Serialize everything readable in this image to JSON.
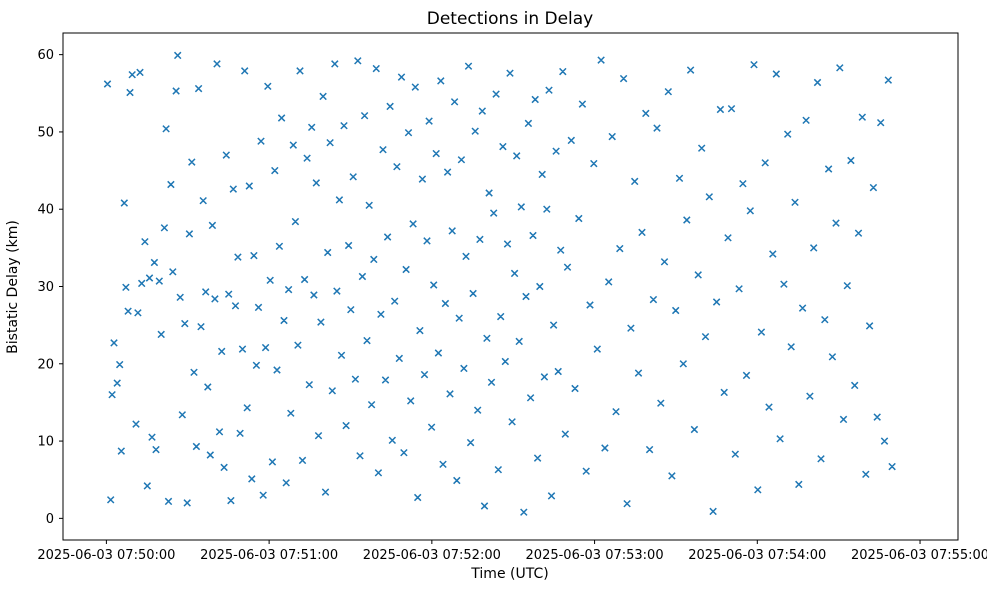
{
  "chart_data": {
    "type": "scatter",
    "title": "Detections in Delay",
    "xlabel": "Time (UTC)",
    "ylabel": "Bistatic Delay (km)",
    "marker": "x",
    "marker_color": "#1f77b4",
    "grid": false,
    "legend": "none",
    "x_unit": "seconds after 2025-06-03 07:50:00 UTC",
    "x_ticks_seconds": [
      0,
      60,
      120,
      180,
      240,
      300
    ],
    "x_tick_labels": [
      "2025-06-03 07:50:00",
      "2025-06-03 07:51:00",
      "2025-06-03 07:52:00",
      "2025-06-03 07:53:00",
      "2025-06-03 07:54:00",
      "2025-06-03 07:55:00"
    ],
    "y_ticks": [
      0,
      10,
      20,
      30,
      40,
      50,
      60
    ],
    "xlim_seconds": [
      -16,
      314
    ],
    "ylim": [
      -2.8,
      62.8
    ],
    "points": [
      [
        0.4,
        56.2
      ],
      [
        1.6,
        2.4
      ],
      [
        2.1,
        16.0
      ],
      [
        2.8,
        22.7
      ],
      [
        4.0,
        17.5
      ],
      [
        4.9,
        19.9
      ],
      [
        5.5,
        8.7
      ],
      [
        6.6,
        40.8
      ],
      [
        7.2,
        29.9
      ],
      [
        8.0,
        26.8
      ],
      [
        8.7,
        55.1
      ],
      [
        9.5,
        57.4
      ],
      [
        10.9,
        12.2
      ],
      [
        11.6,
        26.6
      ],
      [
        12.4,
        57.7
      ],
      [
        13.0,
        30.4
      ],
      [
        14.2,
        35.8
      ],
      [
        15.1,
        4.2
      ],
      [
        15.9,
        31.1
      ],
      [
        16.8,
        10.5
      ],
      [
        17.7,
        33.1
      ],
      [
        18.3,
        8.9
      ],
      [
        19.5,
        30.7
      ],
      [
        20.2,
        23.8
      ],
      [
        21.4,
        37.6
      ],
      [
        22.0,
        50.4
      ],
      [
        22.9,
        2.2
      ],
      [
        23.8,
        43.2
      ],
      [
        24.5,
        31.9
      ],
      [
        25.7,
        55.3
      ],
      [
        26.3,
        59.9
      ],
      [
        27.2,
        28.6
      ],
      [
        28.0,
        13.4
      ],
      [
        28.9,
        25.2
      ],
      [
        29.8,
        2.0
      ],
      [
        30.6,
        36.8
      ],
      [
        31.5,
        46.1
      ],
      [
        32.3,
        18.9
      ],
      [
        33.2,
        9.3
      ],
      [
        34.0,
        55.6
      ],
      [
        34.9,
        24.8
      ],
      [
        35.7,
        41.1
      ],
      [
        36.6,
        29.3
      ],
      [
        37.4,
        17.0
      ],
      [
        38.3,
        8.2
      ],
      [
        39.1,
        37.9
      ],
      [
        40.0,
        28.4
      ],
      [
        40.8,
        58.8
      ],
      [
        41.7,
        11.2
      ],
      [
        42.5,
        21.6
      ],
      [
        43.4,
        6.6
      ],
      [
        44.2,
        47.0
      ],
      [
        45.1,
        29.0
      ],
      [
        45.9,
        2.3
      ],
      [
        46.8,
        42.6
      ],
      [
        47.6,
        27.5
      ],
      [
        48.5,
        33.8
      ],
      [
        49.3,
        11.0
      ],
      [
        50.2,
        21.9
      ],
      [
        51.0,
        57.9
      ],
      [
        51.9,
        14.3
      ],
      [
        52.7,
        43.0
      ],
      [
        53.6,
        5.1
      ],
      [
        54.4,
        34.0
      ],
      [
        55.3,
        19.8
      ],
      [
        56.1,
        27.3
      ],
      [
        57.0,
        48.8
      ],
      [
        57.8,
        3.0
      ],
      [
        58.7,
        22.1
      ],
      [
        59.5,
        55.9
      ],
      [
        60.4,
        30.8
      ],
      [
        61.2,
        7.3
      ],
      [
        62.1,
        45.0
      ],
      [
        62.9,
        19.2
      ],
      [
        63.8,
        35.2
      ],
      [
        64.6,
        51.8
      ],
      [
        65.5,
        25.6
      ],
      [
        66.3,
        4.6
      ],
      [
        67.2,
        29.6
      ],
      [
        68.0,
        13.6
      ],
      [
        68.9,
        48.3
      ],
      [
        69.7,
        38.4
      ],
      [
        70.6,
        22.4
      ],
      [
        71.4,
        57.9
      ],
      [
        72.3,
        7.5
      ],
      [
        73.1,
        30.9
      ],
      [
        74.0,
        46.6
      ],
      [
        74.8,
        17.3
      ],
      [
        75.7,
        50.6
      ],
      [
        76.5,
        28.9
      ],
      [
        77.4,
        43.4
      ],
      [
        78.2,
        10.7
      ],
      [
        79.1,
        25.4
      ],
      [
        79.9,
        54.6
      ],
      [
        80.8,
        3.4
      ],
      [
        81.6,
        34.4
      ],
      [
        82.5,
        48.6
      ],
      [
        83.3,
        16.5
      ],
      [
        84.2,
        58.8
      ],
      [
        85.0,
        29.4
      ],
      [
        85.9,
        41.2
      ],
      [
        86.7,
        21.1
      ],
      [
        87.6,
        50.8
      ],
      [
        88.4,
        12.0
      ],
      [
        89.3,
        35.3
      ],
      [
        90.1,
        27.0
      ],
      [
        91.0,
        44.2
      ],
      [
        91.8,
        18.0
      ],
      [
        92.7,
        59.2
      ],
      [
        93.5,
        8.1
      ],
      [
        94.4,
        31.3
      ],
      [
        95.2,
        52.1
      ],
      [
        96.1,
        23.0
      ],
      [
        96.9,
        40.5
      ],
      [
        97.8,
        14.7
      ],
      [
        98.6,
        33.5
      ],
      [
        99.5,
        58.2
      ],
      [
        100.3,
        5.9
      ],
      [
        101.2,
        26.4
      ],
      [
        102.0,
        47.7
      ],
      [
        102.9,
        17.9
      ],
      [
        103.7,
        36.4
      ],
      [
        104.6,
        53.3
      ],
      [
        105.4,
        10.1
      ],
      [
        106.3,
        28.1
      ],
      [
        107.1,
        45.5
      ],
      [
        108.0,
        20.7
      ],
      [
        108.8,
        57.1
      ],
      [
        109.7,
        8.5
      ],
      [
        110.5,
        32.2
      ],
      [
        111.4,
        49.9
      ],
      [
        112.2,
        15.2
      ],
      [
        113.1,
        38.1
      ],
      [
        113.9,
        55.8
      ],
      [
        114.8,
        2.7
      ],
      [
        115.6,
        24.3
      ],
      [
        116.5,
        43.9
      ],
      [
        117.3,
        18.6
      ],
      [
        118.2,
        35.9
      ],
      [
        119.0,
        51.4
      ],
      [
        119.9,
        11.8
      ],
      [
        120.7,
        30.2
      ],
      [
        121.6,
        47.2
      ],
      [
        122.4,
        21.4
      ],
      [
        123.3,
        56.6
      ],
      [
        124.1,
        7.0
      ],
      [
        125.0,
        27.8
      ],
      [
        125.8,
        44.8
      ],
      [
        126.7,
        16.1
      ],
      [
        127.5,
        37.2
      ],
      [
        128.4,
        53.9
      ],
      [
        129.2,
        4.9
      ],
      [
        130.1,
        25.9
      ],
      [
        130.9,
        46.4
      ],
      [
        131.8,
        19.4
      ],
      [
        132.6,
        33.9
      ],
      [
        133.5,
        58.5
      ],
      [
        134.3,
        9.8
      ],
      [
        135.2,
        29.1
      ],
      [
        136.0,
        50.1
      ],
      [
        136.9,
        14.0
      ],
      [
        137.7,
        36.1
      ],
      [
        138.6,
        52.7
      ],
      [
        139.4,
        1.6
      ],
      [
        140.3,
        23.3
      ],
      [
        141.1,
        42.1
      ],
      [
        142.0,
        17.6
      ],
      [
        142.8,
        39.5
      ],
      [
        143.7,
        54.9
      ],
      [
        144.5,
        6.3
      ],
      [
        145.4,
        26.1
      ],
      [
        146.2,
        48.1
      ],
      [
        147.1,
        20.3
      ],
      [
        147.9,
        35.5
      ],
      [
        148.8,
        57.6
      ],
      [
        149.6,
        12.5
      ],
      [
        150.5,
        31.7
      ],
      [
        151.3,
        46.9
      ],
      [
        152.2,
        22.9
      ],
      [
        153.0,
        40.3
      ],
      [
        153.9,
        0.8
      ],
      [
        154.7,
        28.7
      ],
      [
        155.6,
        51.1
      ],
      [
        156.4,
        15.6
      ],
      [
        157.3,
        36.6
      ],
      [
        158.1,
        54.2
      ],
      [
        159.0,
        7.8
      ],
      [
        159.8,
        30.0
      ],
      [
        160.7,
        44.5
      ],
      [
        161.5,
        18.3
      ],
      [
        162.4,
        40.0
      ],
      [
        163.2,
        55.4
      ],
      [
        164.1,
        2.9
      ],
      [
        164.9,
        25.0
      ],
      [
        165.8,
        47.5
      ],
      [
        166.6,
        19.0
      ],
      [
        167.5,
        34.7
      ],
      [
        168.3,
        57.8
      ],
      [
        169.2,
        10.9
      ],
      [
        170.0,
        32.5
      ],
      [
        171.4,
        48.9
      ],
      [
        172.8,
        16.8
      ],
      [
        174.2,
        38.8
      ],
      [
        175.5,
        53.6
      ],
      [
        176.9,
        6.1
      ],
      [
        178.3,
        27.6
      ],
      [
        179.7,
        45.9
      ],
      [
        181.0,
        21.9
      ],
      [
        182.4,
        59.3
      ],
      [
        183.8,
        9.1
      ],
      [
        185.2,
        30.6
      ],
      [
        186.5,
        49.4
      ],
      [
        187.9,
        13.8
      ],
      [
        189.3,
        34.9
      ],
      [
        190.7,
        56.9
      ],
      [
        192.0,
        1.9
      ],
      [
        193.4,
        24.6
      ],
      [
        194.8,
        43.6
      ],
      [
        196.2,
        18.8
      ],
      [
        197.5,
        37.0
      ],
      [
        198.9,
        52.4
      ],
      [
        200.3,
        8.9
      ],
      [
        201.7,
        28.3
      ],
      [
        203.0,
        50.5
      ],
      [
        204.4,
        14.9
      ],
      [
        205.8,
        33.2
      ],
      [
        207.2,
        55.2
      ],
      [
        208.5,
        5.5
      ],
      [
        209.9,
        26.9
      ],
      [
        211.3,
        44.0
      ],
      [
        212.7,
        20.0
      ],
      [
        214.0,
        38.6
      ],
      [
        215.4,
        58.0
      ],
      [
        216.8,
        11.5
      ],
      [
        218.2,
        31.5
      ],
      [
        219.5,
        47.9
      ],
      [
        220.9,
        23.5
      ],
      [
        222.3,
        41.6
      ],
      [
        223.7,
        0.9
      ],
      [
        225.0,
        28.0
      ],
      [
        226.4,
        52.9
      ],
      [
        227.8,
        16.3
      ],
      [
        229.2,
        36.3
      ],
      [
        230.5,
        53.0
      ],
      [
        231.9,
        8.3
      ],
      [
        233.3,
        29.7
      ],
      [
        234.7,
        43.3
      ],
      [
        236.0,
        18.5
      ],
      [
        237.4,
        39.8
      ],
      [
        238.8,
        58.7
      ],
      [
        240.2,
        3.7
      ],
      [
        241.5,
        24.1
      ],
      [
        242.9,
        46.0
      ],
      [
        244.3,
        14.4
      ],
      [
        245.7,
        34.2
      ],
      [
        247.0,
        57.5
      ],
      [
        248.4,
        10.3
      ],
      [
        249.8,
        30.3
      ],
      [
        251.2,
        49.7
      ],
      [
        252.5,
        22.2
      ],
      [
        253.9,
        40.9
      ],
      [
        255.3,
        4.4
      ],
      [
        256.7,
        27.2
      ],
      [
        258.0,
        51.5
      ],
      [
        259.4,
        15.8
      ],
      [
        260.8,
        35.0
      ],
      [
        262.2,
        56.4
      ],
      [
        263.5,
        7.7
      ],
      [
        264.9,
        25.7
      ],
      [
        266.3,
        45.2
      ],
      [
        267.7,
        20.9
      ],
      [
        269.0,
        38.2
      ],
      [
        270.4,
        58.3
      ],
      [
        271.8,
        12.8
      ],
      [
        273.2,
        30.1
      ],
      [
        274.5,
        46.3
      ],
      [
        275.9,
        17.2
      ],
      [
        277.3,
        36.9
      ],
      [
        278.7,
        51.9
      ],
      [
        280.0,
        5.7
      ],
      [
        281.4,
        24.9
      ],
      [
        282.8,
        42.8
      ],
      [
        284.2,
        13.1
      ],
      [
        285.5,
        51.2
      ],
      [
        286.9,
        10.0
      ],
      [
        288.3,
        56.7
      ],
      [
        289.7,
        6.7
      ]
    ]
  }
}
